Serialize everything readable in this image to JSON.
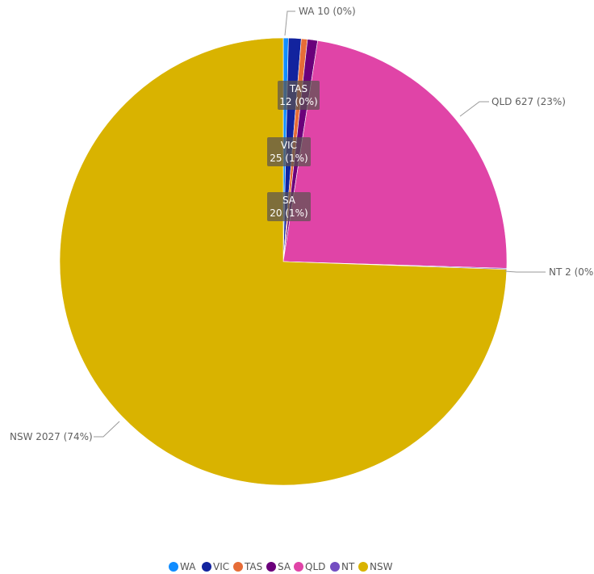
{
  "chart_data": {
    "type": "pie",
    "title": "",
    "categories": [
      "WA",
      "VIC",
      "TAS",
      "SA",
      "QLD",
      "NT",
      "NSW"
    ],
    "values": [
      10,
      25,
      12,
      20,
      627,
      2,
      2027
    ],
    "percent_labels": [
      "0%",
      "1%",
      "0%",
      "1%",
      "23%",
      "0%",
      "74%"
    ],
    "colors": [
      "#118dff",
      "#12239e",
      "#e66c37",
      "#6b007b",
      "#e044a7",
      "#744ec2",
      "#d9b300"
    ],
    "legend": {
      "position": "bottom-center",
      "items": [
        "WA",
        "VIC",
        "TAS",
        "SA",
        "QLD",
        "NT",
        "NSW"
      ]
    },
    "outside_labels": [
      "WA 10 (0%)",
      "QLD 627 (23%)",
      "NT 2 (0%)",
      "NSW 2027 (74%)"
    ],
    "inside_labels": [
      {
        "category": "TAS",
        "value": "12 (0%)"
      },
      {
        "category": "VIC",
        "value": "25 (1%)"
      },
      {
        "category": "SA",
        "value": "20 (1%)"
      }
    ]
  }
}
